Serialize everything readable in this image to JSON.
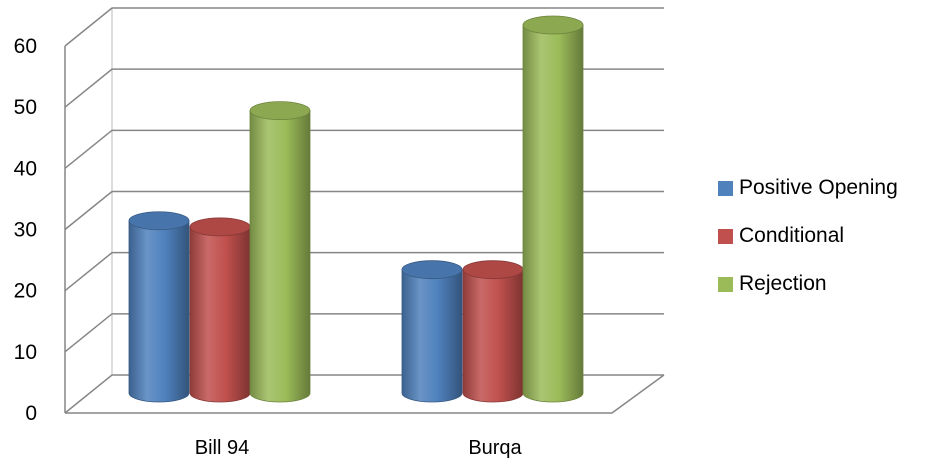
{
  "chart_data": {
    "type": "bar",
    "style": "3d-cylinder",
    "categories": [
      "Bill 94",
      "Burqa"
    ],
    "series": [
      {
        "name": "Positive Opening",
        "values": [
          28,
          20
        ],
        "color": "#4F81BD"
      },
      {
        "name": "Conditional",
        "values": [
          27,
          20
        ],
        "color": "#C0504D"
      },
      {
        "name": "Rejection",
        "values": [
          46,
          60
        ],
        "color": "#9BBB59"
      }
    ],
    "ylim": [
      0,
      60
    ],
    "yticks": [
      "0",
      "10",
      "20",
      "30",
      "40",
      "50",
      "60"
    ],
    "grid": true,
    "legend_position": "right"
  }
}
